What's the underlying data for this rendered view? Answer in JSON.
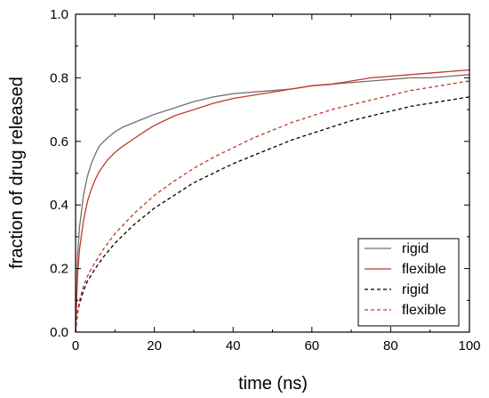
{
  "chart_data": {
    "type": "line",
    "xlabel": "time (ns)",
    "ylabel": "fraction of drug released",
    "xlim": [
      0,
      100
    ],
    "ylim": [
      0,
      1.0
    ],
    "x_ticks": [
      "0",
      "20",
      "40",
      "60",
      "80",
      "100"
    ],
    "y_ticks": [
      "0.0",
      "0.2",
      "0.4",
      "0.6",
      "0.8",
      "1.0"
    ],
    "grid": false,
    "legend_position": "bottom-right",
    "series": [
      {
        "name": "rigid",
        "style": "solid",
        "color": "#707070",
        "x": [
          0,
          0.5,
          1,
          2,
          3,
          4,
          5,
          6,
          8,
          10,
          12,
          15,
          18,
          20,
          25,
          30,
          35,
          40,
          45,
          50,
          55,
          60,
          65,
          70,
          75,
          80,
          85,
          90,
          95,
          100
        ],
        "y": [
          0,
          0.24,
          0.33,
          0.43,
          0.49,
          0.53,
          0.56,
          0.585,
          0.61,
          0.63,
          0.645,
          0.66,
          0.675,
          0.685,
          0.705,
          0.725,
          0.74,
          0.75,
          0.755,
          0.76,
          0.765,
          0.775,
          0.78,
          0.785,
          0.79,
          0.795,
          0.8,
          0.8,
          0.805,
          0.81
        ]
      },
      {
        "name": "flexible",
        "style": "solid",
        "color": "#c0392b",
        "x": [
          0,
          0.5,
          1,
          2,
          3,
          4,
          5,
          6,
          8,
          10,
          12,
          15,
          18,
          20,
          25,
          30,
          35,
          40,
          45,
          50,
          55,
          60,
          65,
          70,
          75,
          80,
          85,
          90,
          95,
          100
        ],
        "y": [
          0,
          0.18,
          0.26,
          0.35,
          0.41,
          0.45,
          0.48,
          0.505,
          0.54,
          0.565,
          0.585,
          0.61,
          0.635,
          0.65,
          0.68,
          0.7,
          0.72,
          0.735,
          0.745,
          0.755,
          0.765,
          0.775,
          0.78,
          0.79,
          0.8,
          0.805,
          0.81,
          0.815,
          0.82,
          0.825
        ]
      },
      {
        "name": "rigid",
        "style": "dashed",
        "color": "#000000",
        "x": [
          0,
          0.5,
          1,
          2,
          3,
          4,
          5,
          7,
          10,
          15,
          20,
          25,
          30,
          35,
          40,
          45,
          50,
          55,
          60,
          65,
          70,
          75,
          80,
          85,
          90,
          95,
          100
        ],
        "y": [
          0,
          0.06,
          0.09,
          0.13,
          0.16,
          0.18,
          0.2,
          0.235,
          0.28,
          0.34,
          0.39,
          0.43,
          0.47,
          0.5,
          0.53,
          0.555,
          0.58,
          0.605,
          0.625,
          0.645,
          0.665,
          0.68,
          0.695,
          0.71,
          0.72,
          0.73,
          0.74
        ]
      },
      {
        "name": "flexible",
        "style": "dashed",
        "color": "#c0392b",
        "x": [
          0,
          0.5,
          1,
          2,
          3,
          4,
          5,
          7,
          10,
          15,
          20,
          25,
          30,
          35,
          40,
          45,
          50,
          55,
          60,
          65,
          70,
          75,
          80,
          85,
          90,
          95,
          100
        ],
        "y": [
          0,
          0.065,
          0.1,
          0.145,
          0.175,
          0.2,
          0.22,
          0.26,
          0.31,
          0.375,
          0.43,
          0.475,
          0.515,
          0.55,
          0.58,
          0.61,
          0.635,
          0.66,
          0.68,
          0.7,
          0.715,
          0.73,
          0.745,
          0.76,
          0.77,
          0.78,
          0.79
        ]
      }
    ]
  }
}
